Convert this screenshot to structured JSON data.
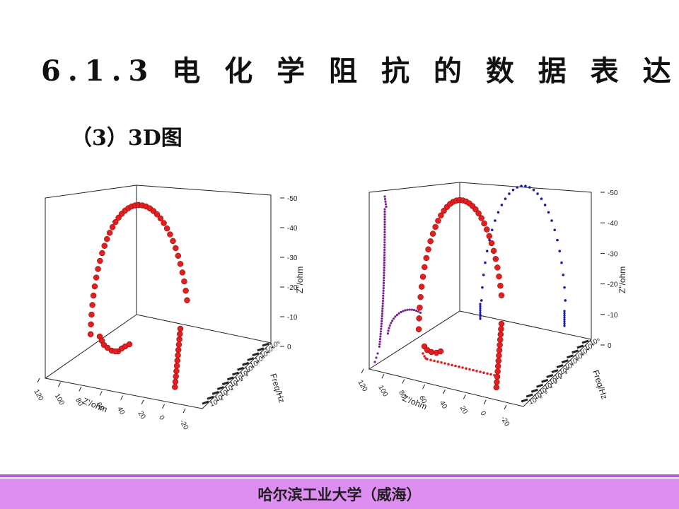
{
  "slide": {
    "title": "6.1.3 电 化 学 阻 抗 的 数 据 表 达",
    "subtitle": "（3）3D图",
    "footer": "哈尔滨工业大学（威海）"
  },
  "colors": {
    "divider": "#b35ad6",
    "footer_bg": "#dd8ef0",
    "red_series": "#e02020",
    "purple_series": "#7a2090",
    "blue_series": "#1a1aa8"
  },
  "chart_data": [
    {
      "type": "scatter",
      "name": "3D impedance plot",
      "axes": {
        "z_label": "Z\"/ohm",
        "z_ticks": [
          "-50",
          "-40",
          "-30",
          "-20",
          "-10",
          "0"
        ],
        "x_label": "Z'/ohm",
        "x_ticks": [
          "120",
          "100",
          "80",
          "60",
          "40",
          "20",
          "0",
          "-20"
        ],
        "y_label": "Freq/Hz",
        "y_ticks": [
          "10⁻⁶",
          "10⁻⁵",
          "10⁻⁴",
          "10⁻³",
          "10⁻²",
          "10⁻¹",
          "10⁰",
          "10¹",
          "10²",
          "10³",
          "10⁴",
          "10⁵",
          "10⁶"
        ]
      },
      "series": [
        {
          "color": "#e02020",
          "note": "Nyquist semicircle with diffusion tail"
        }
      ]
    },
    {
      "type": "scatter",
      "name": "3D impedance plot with projections",
      "axes": {
        "z_label": "Z\"/ohm",
        "z_ticks": [
          "-50",
          "-40",
          "-30",
          "-20",
          "-10",
          "0"
        ],
        "x_label": "Z'/ohm",
        "x_ticks": [
          "120",
          "100",
          "80",
          "60",
          "40",
          "20",
          "0",
          "-20"
        ],
        "y_label": "Freq/Hz",
        "y_ticks": [
          "10⁻⁶",
          "10⁻⁵",
          "10⁻⁴",
          "10⁻³",
          "10⁻²",
          "10⁻¹",
          "10⁰",
          "10¹",
          "10²",
          "10³",
          "10⁴",
          "10⁵",
          "10⁶"
        ]
      },
      "series": [
        {
          "color": "#e02020",
          "note": "3D curve"
        },
        {
          "color": "#7a2090",
          "note": "projection on Z'-Z'' plane"
        },
        {
          "color": "#1a1aa8",
          "note": "projection on Freq-Z'' plane"
        }
      ]
    }
  ]
}
